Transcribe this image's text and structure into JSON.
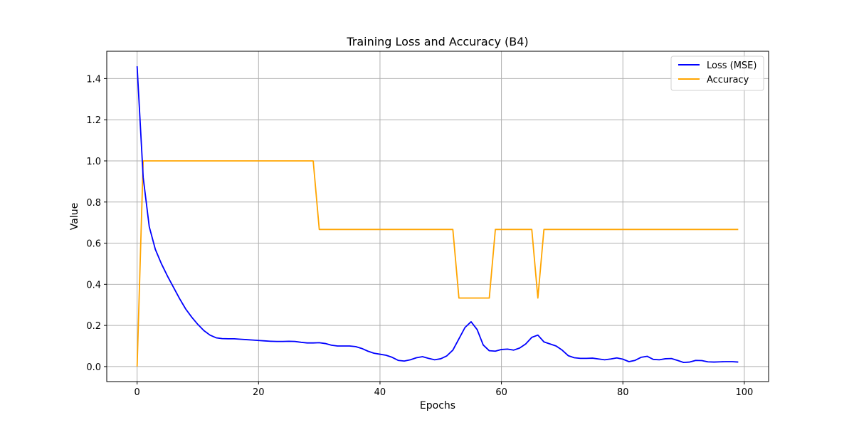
{
  "chart_data": {
    "type": "line",
    "title": "Training Loss and Accuracy (B4)",
    "xlabel": "Epochs",
    "ylabel": "Value",
    "xlim": [
      -5,
      104
    ],
    "ylim": [
      -0.073,
      1.533
    ],
    "xticks": [
      0,
      20,
      40,
      60,
      80,
      100
    ],
    "yticks": [
      0.0,
      0.2,
      0.4,
      0.6,
      0.8,
      1.0,
      1.2,
      1.4
    ],
    "xtick_labels": [
      "0",
      "20",
      "40",
      "60",
      "80",
      "100"
    ],
    "ytick_labels": [
      "0.0",
      "0.2",
      "0.4",
      "0.6",
      "0.8",
      "1.0",
      "1.2",
      "1.4"
    ],
    "grid": true,
    "legend_position": "top-right",
    "x": [
      0,
      1,
      2,
      3,
      4,
      5,
      6,
      7,
      8,
      9,
      10,
      11,
      12,
      13,
      14,
      15,
      16,
      17,
      18,
      19,
      20,
      21,
      22,
      23,
      24,
      25,
      26,
      27,
      28,
      29,
      30,
      31,
      32,
      33,
      34,
      35,
      36,
      37,
      38,
      39,
      40,
      41,
      42,
      43,
      44,
      45,
      46,
      47,
      48,
      49,
      50,
      51,
      52,
      53,
      54,
      55,
      56,
      57,
      58,
      59,
      60,
      61,
      62,
      63,
      64,
      65,
      66,
      67,
      68,
      69,
      70,
      71,
      72,
      73,
      74,
      75,
      76,
      77,
      78,
      79,
      80,
      81,
      82,
      83,
      84,
      85,
      86,
      87,
      88,
      89,
      90,
      91,
      92,
      93,
      94,
      95,
      96,
      97,
      98,
      99
    ],
    "series": [
      {
        "name": "Loss (MSE)",
        "color": "#0000ff",
        "values": [
          1.46,
          0.92,
          0.68,
          0.57,
          0.5,
          0.44,
          0.385,
          0.33,
          0.28,
          0.24,
          0.205,
          0.175,
          0.153,
          0.14,
          0.136,
          0.135,
          0.135,
          0.133,
          0.131,
          0.129,
          0.127,
          0.125,
          0.123,
          0.122,
          0.122,
          0.123,
          0.122,
          0.118,
          0.115,
          0.115,
          0.116,
          0.112,
          0.104,
          0.1,
          0.1,
          0.1,
          0.097,
          0.088,
          0.075,
          0.065,
          0.06,
          0.055,
          0.045,
          0.03,
          0.027,
          0.033,
          0.043,
          0.048,
          0.04,
          0.033,
          0.038,
          0.052,
          0.08,
          0.135,
          0.19,
          0.218,
          0.18,
          0.105,
          0.077,
          0.075,
          0.083,
          0.085,
          0.08,
          0.09,
          0.11,
          0.142,
          0.153,
          0.12,
          0.11,
          0.1,
          0.08,
          0.053,
          0.043,
          0.04,
          0.04,
          0.041,
          0.037,
          0.033,
          0.037,
          0.042,
          0.036,
          0.024,
          0.03,
          0.045,
          0.05,
          0.035,
          0.033,
          0.038,
          0.039,
          0.03,
          0.02,
          0.022,
          0.03,
          0.029,
          0.023,
          0.022,
          0.023,
          0.024,
          0.024,
          0.022
        ]
      },
      {
        "name": "Accuracy",
        "color": "#ffa500",
        "values": [
          0.0,
          1.0,
          1.0,
          1.0,
          1.0,
          1.0,
          1.0,
          1.0,
          1.0,
          1.0,
          1.0,
          1.0,
          1.0,
          1.0,
          1.0,
          1.0,
          1.0,
          1.0,
          1.0,
          1.0,
          1.0,
          1.0,
          1.0,
          1.0,
          1.0,
          1.0,
          1.0,
          1.0,
          1.0,
          1.0,
          0.6667,
          0.6667,
          0.6667,
          0.6667,
          0.6667,
          0.6667,
          0.6667,
          0.6667,
          0.6667,
          0.6667,
          0.6667,
          0.6667,
          0.6667,
          0.6667,
          0.6667,
          0.6667,
          0.6667,
          0.6667,
          0.6667,
          0.6667,
          0.6667,
          0.6667,
          0.6667,
          0.3333,
          0.3333,
          0.3333,
          0.3333,
          0.3333,
          0.3333,
          0.6667,
          0.6667,
          0.6667,
          0.6667,
          0.6667,
          0.6667,
          0.6667,
          0.3333,
          0.6667,
          0.6667,
          0.6667,
          0.6667,
          0.6667,
          0.6667,
          0.6667,
          0.6667,
          0.6667,
          0.6667,
          0.6667,
          0.6667,
          0.6667,
          0.6667,
          0.6667,
          0.6667,
          0.6667,
          0.6667,
          0.6667,
          0.6667,
          0.6667,
          0.6667,
          0.6667,
          0.6667,
          0.6667,
          0.6667,
          0.6667,
          0.6667,
          0.6667,
          0.6667,
          0.6667,
          0.6667,
          0.6667
        ]
      }
    ]
  }
}
